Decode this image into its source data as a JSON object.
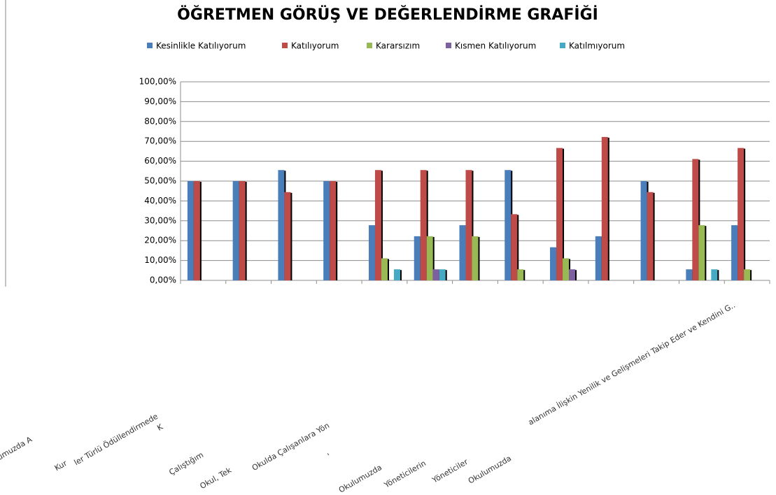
{
  "chart_data": {
    "type": "bar",
    "title": "ÖĞRETMEN GÖRÜŞ VE DEĞERLENDİRME GRAFİĞİ",
    "categories": [
      "ulumuzda A",
      "Kur",
      "ler Türlü Ödüllendirmede",
      "K",
      "Çalıştığım",
      "Okul, Tek",
      "Okulda Çalışanlara Yön",
      "'",
      "Okulumuzda",
      "Yöneticilerin",
      "Yöneticiler",
      "Okulumuzda",
      "alanıma İlişkin Yenilik ve Gelişmeleri Takip Eder ve Kendini G.."
    ],
    "series": [
      {
        "name": "Kesinlikle Katılıyorum",
        "color": "#4a7ebb",
        "values": [
          50,
          50,
          55.56,
          50,
          27.78,
          22.22,
          27.78,
          55.56,
          16.67,
          22.22,
          50,
          5.56,
          27.78
        ]
      },
      {
        "name": "Katılıyorum",
        "color": "#be4b48",
        "values": [
          50,
          50,
          44.44,
          50,
          55.56,
          55.56,
          55.56,
          33.33,
          66.67,
          72.22,
          44.44,
          61.11,
          66.67
        ]
      },
      {
        "name": "Kararsızım",
        "color": "#98b954",
        "values": [
          0,
          0,
          0,
          0,
          11.11,
          22.22,
          22.22,
          5.56,
          11.11,
          0,
          0,
          27.78,
          5.56
        ]
      },
      {
        "name": "Kısmen Katılıyorum",
        "color": "#7d60a0",
        "values": [
          0,
          0,
          0,
          0,
          0,
          5.56,
          0,
          0,
          5.56,
          0,
          0,
          0,
          0
        ]
      },
      {
        "name": "Katılmıyorum",
        "color": "#46aac5",
        "values": [
          0,
          0,
          0,
          0,
          5.56,
          5.56,
          0,
          0,
          0,
          0,
          0,
          5.56,
          0
        ]
      }
    ],
    "ylim": [
      0,
      100
    ],
    "yticks": [
      {
        "value": 0,
        "label": "0,00%"
      },
      {
        "value": 10,
        "label": "10,00%"
      },
      {
        "value": 20,
        "label": "20,00%"
      },
      {
        "value": 30,
        "label": "30,00%"
      },
      {
        "value": 40,
        "label": "40,00%"
      },
      {
        "value": 50,
        "label": "50,00%"
      },
      {
        "value": 60,
        "label": "60,00%"
      },
      {
        "value": 70,
        "label": "70,00%"
      },
      {
        "value": 80,
        "label": "80,00%"
      },
      {
        "value": 90,
        "label": "90,00%"
      },
      {
        "value": 100,
        "label": "100,00%"
      }
    ],
    "grid": true
  }
}
